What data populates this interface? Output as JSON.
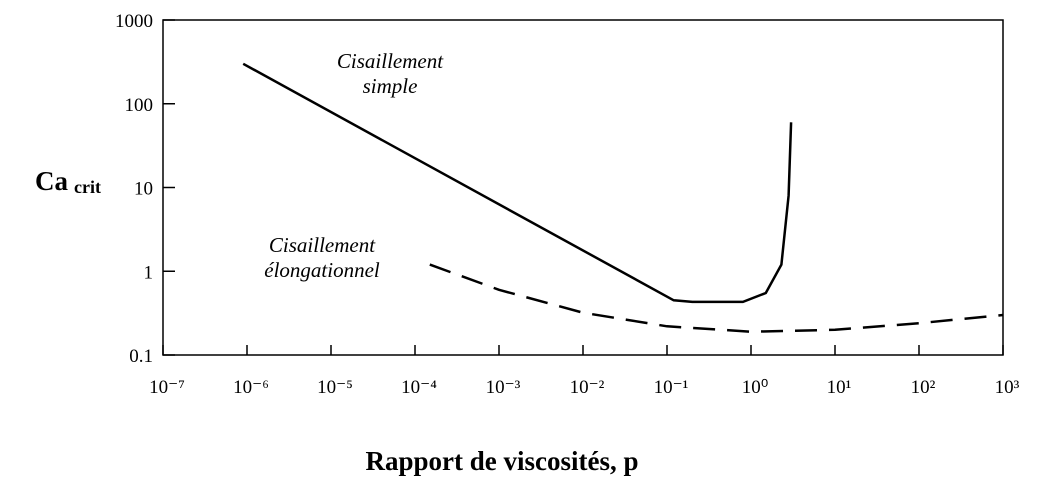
{
  "chart_data": {
    "type": "line",
    "xlabel": "Rapport de viscosités, p",
    "ylabel": {
      "main": "Ca",
      "sub": "crit"
    },
    "xscale": "log",
    "yscale": "log",
    "xlim": [
      1e-07,
      1000
    ],
    "ylim": [
      0.1,
      1000
    ],
    "xticks": [
      {
        "value": 1e-07,
        "label": "10⁻⁷"
      },
      {
        "value": 1e-06,
        "label": "10⁻⁶"
      },
      {
        "value": 1e-05,
        "label": "10⁻⁵"
      },
      {
        "value": 0.0001,
        "label": "10⁻⁴"
      },
      {
        "value": 0.001,
        "label": "10⁻³"
      },
      {
        "value": 0.01,
        "label": "10⁻²"
      },
      {
        "value": 0.1,
        "label": "10⁻¹"
      },
      {
        "value": 1,
        "label": "10⁰"
      },
      {
        "value": 10,
        "label": "10¹"
      },
      {
        "value": 100,
        "label": "10²"
      },
      {
        "value": 1000,
        "label": "10³"
      }
    ],
    "yticks": [
      0.1,
      1,
      10,
      100,
      1000
    ],
    "series": [
      {
        "label_lines": [
          "Cisaillement",
          "simple"
        ],
        "color": "#000000",
        "dash": false,
        "x": [
          9e-07,
          0.12,
          0.2,
          0.8,
          1.5,
          2.3,
          2.8,
          3.0
        ],
        "values": [
          300,
          0.45,
          0.43,
          0.43,
          0.55,
          1.2,
          8,
          60
        ]
      },
      {
        "label_lines": [
          "Cisaillement",
          "élongationnel"
        ],
        "color": "#000000",
        "dash": true,
        "x": [
          0.00015,
          0.001,
          0.01,
          0.1,
          1,
          10,
          100,
          1000
        ],
        "values": [
          1.2,
          0.6,
          0.32,
          0.22,
          0.19,
          0.2,
          0.24,
          0.3
        ]
      }
    ]
  }
}
